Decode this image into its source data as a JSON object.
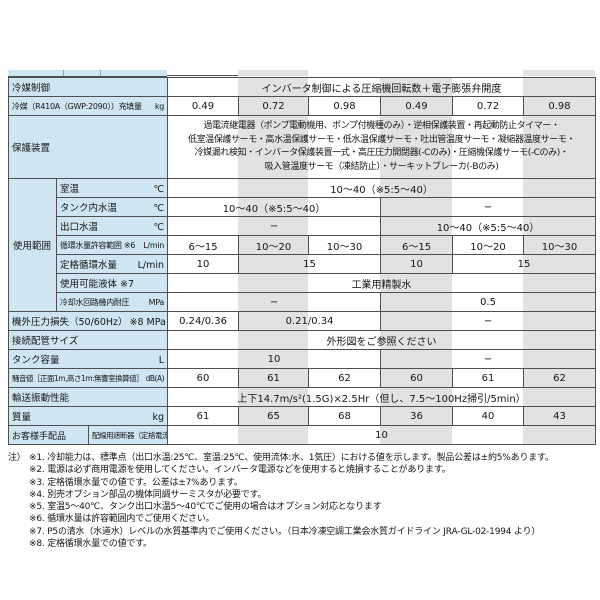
{
  "colors": {
    "label_bg": "#cfe5f2",
    "stripe": "#e2e2e2",
    "border": "#4f4f4f",
    "page_bg": "#ffffff"
  },
  "table": {
    "columns": 6,
    "rows": [
      {
        "type": "full",
        "label": "冷媒制御",
        "cells": [
          {
            "t": "インバータ制御による圧縮機回転数＋電子膨張弁開度",
            "s": 6
          }
        ]
      },
      {
        "type": "full",
        "label": "冷媒（R410A（GWP:2090））充填量",
        "unit": "kg",
        "cells": [
          {
            "t": "0.49"
          },
          {
            "t": "0.72"
          },
          {
            "t": "0.98"
          },
          {
            "t": "0.49"
          },
          {
            "t": "0.72"
          },
          {
            "t": "0.98"
          }
        ]
      },
      {
        "type": "full",
        "label": "保護装置",
        "tall": true,
        "cells": [
          {
            "s": 6,
            "lines": [
              "過電流継電器（ポンプ電動機用、ポンプ付機種のみ）・逆相保護装置・再起動防止タイマー・",
              "低室温保護サーモ・高水温保護サーモ・低水温保護サーモ・吐出管温度サーモ・凝縮器温度サーモ・",
              "冷媒漏れ検知・インバータ保護装置一式・高圧圧力開閉器(-Cのみ)・圧縮機保護サーモ(-Cのみ)・",
              "吸入管温度サーモ（凍結防止）・サーキットブレーカ(-Bのみ)"
            ]
          }
        ]
      },
      {
        "type": "group",
        "group": "使用範囲",
        "span": 7,
        "label": "室温",
        "unit": "℃",
        "cells": [
          {
            "t": "10～40（※5:5～40）",
            "s": 6
          }
        ]
      },
      {
        "type": "sub",
        "label": "タンク内水温",
        "unit": "℃",
        "cells": [
          {
            "t": "10～40（※5:5～40）",
            "s": 3
          },
          {
            "t": "−",
            "s": 3
          }
        ]
      },
      {
        "type": "sub",
        "label": "出口水温",
        "unit": "℃",
        "cells": [
          {
            "t": "−",
            "s": 3
          },
          {
            "t": "10～40（※5:5～40）",
            "s": 3
          }
        ]
      },
      {
        "type": "sub",
        "label": "循環水量許容範囲 ※6",
        "unit": "L/min",
        "cells": [
          {
            "t": "6～15"
          },
          {
            "t": "10～20"
          },
          {
            "t": "10～30"
          },
          {
            "t": "6～15"
          },
          {
            "t": "10～20"
          },
          {
            "t": "10～30"
          }
        ]
      },
      {
        "type": "sub",
        "label": "定格循環水量",
        "unit": "L/min",
        "cells": [
          {
            "t": "10"
          },
          {
            "t": "15",
            "s": 2
          },
          {
            "t": "10"
          },
          {
            "t": "15",
            "s": 2
          }
        ]
      },
      {
        "type": "sub",
        "label": "使用可能液体 ※7",
        "cells": [
          {
            "t": "工業用精製水",
            "s": 6
          }
        ]
      },
      {
        "type": "sub",
        "label": "冷却水回路機内耐圧",
        "unit": "MPa",
        "cells": [
          {
            "t": "−",
            "s": 3
          },
          {
            "t": "0.5",
            "s": 3
          }
        ]
      },
      {
        "type": "full",
        "label": "機外圧力損失（50/60Hz）",
        "unit": "※8 MPa",
        "cells": [
          {
            "t": "0.24/0.36"
          },
          {
            "t": "0.21/0.34",
            "s": 2
          },
          {
            "t": "−",
            "s": 3
          }
        ]
      },
      {
        "type": "full",
        "label": "接続配管サイズ",
        "cells": [
          {
            "t": "外形図をご参照ください",
            "s": 6
          }
        ]
      },
      {
        "type": "full",
        "label": "タンク容量",
        "unit": "L",
        "cells": [
          {
            "t": "10",
            "s": 3
          },
          {
            "t": "−",
            "s": 3
          }
        ]
      },
      {
        "type": "full",
        "label": "騒音値［正面1m,高さ1m:無響室換算値］",
        "unit": "dB(A)",
        "cells": [
          {
            "t": "60"
          },
          {
            "t": "61"
          },
          {
            "t": "62"
          },
          {
            "t": "60"
          },
          {
            "t": "61"
          },
          {
            "t": "62"
          }
        ]
      },
      {
        "type": "full",
        "label": "輸送振動性能",
        "cells": [
          {
            "t": "上下14.7m/s²(1.5G)×2.5Hr（但し、7.5～100Hz掃引/5min）",
            "s": 6
          }
        ]
      },
      {
        "type": "full",
        "label": "質量",
        "unit": "kg",
        "cells": [
          {
            "t": "61"
          },
          {
            "t": "65"
          },
          {
            "t": "68"
          },
          {
            "t": "36"
          },
          {
            "t": "40"
          },
          {
            "t": "43"
          }
        ]
      },
      {
        "type": "split",
        "group": "お客様手配品",
        "label": "配線用遮断器（定格電流）",
        "unit": "A",
        "cells": [
          {
            "t": "10",
            "s": 6
          }
        ]
      }
    ]
  },
  "notes": {
    "prefix": "注）",
    "items": [
      "※1. 冷却能力は、標準点（出口水温:25℃、室温:25℃、使用流体:水、1気圧）における値を示します。製品公差は±約5%あります。",
      "※2. 電源は必ず商用電源を使用してください。インバータ電源などを使用すると焼損することがあります。",
      "※3. 定格循環水量での値です。公差は±7%あります。",
      "※4. 別売オプション部品の機体同調サーミスタが必要です。",
      "※5. 室温5～40℃、タンク出口水温5～40℃でご使用の場合はオプション対応となります",
      "※6. 循環水量は許容範囲内でご使用ください。",
      "※7. P5の清水（水道水）レベルの水質基準内でご使用ください。（日本冷凍空調工業会水質ガイドライン JRA-GL-02-1994 より）",
      "※8. 定格循環水量での値です。"
    ]
  }
}
